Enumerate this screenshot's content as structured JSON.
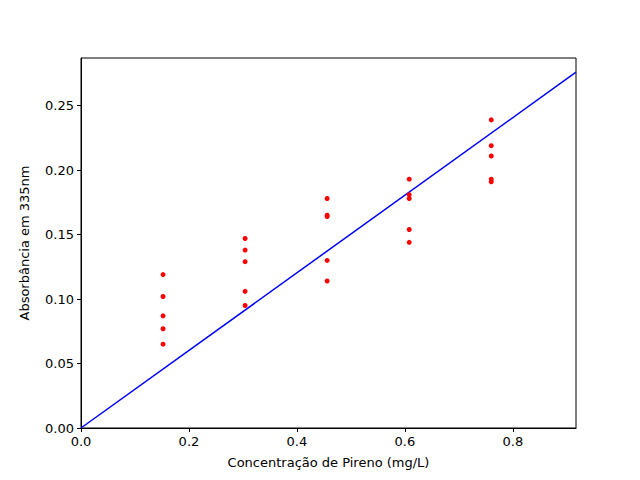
{
  "chart_data": {
    "type": "scatter",
    "x_label": "Concentração de Pireno (mg/L)",
    "y_label": "Absorbância em 335nm",
    "series": [
      {
        "type": "scatter",
        "color": "#ff0000",
        "marker": "circle",
        "x": [
          0.152,
          0.152,
          0.152,
          0.152,
          0.152,
          0.304,
          0.304,
          0.304,
          0.304,
          0.304,
          0.456,
          0.456,
          0.456,
          0.456,
          0.456,
          0.608,
          0.608,
          0.608,
          0.608,
          0.608,
          0.76,
          0.76,
          0.76,
          0.76,
          0.76
        ],
        "values": [
          0.119,
          0.102,
          0.087,
          0.077,
          0.065,
          0.147,
          0.138,
          0.129,
          0.106,
          0.095,
          0.178,
          0.165,
          0.164,
          0.13,
          0.114,
          0.193,
          0.181,
          0.178,
          0.154,
          0.144,
          0.239,
          0.219,
          0.211,
          0.193,
          0.191
        ]
      },
      {
        "type": "line",
        "color": "#0000ff",
        "line_style": "solid",
        "x": [
          0,
          0.917
        ],
        "values": [
          0,
          0.276
        ]
      }
    ],
    "xlim": [
      0,
      0.917
    ],
    "ylim": [
      0,
      0.287
    ],
    "xticks": [
      {
        "value": 0,
        "label": "0.0"
      },
      {
        "value": 0.2,
        "label": "0.2"
      },
      {
        "value": 0.4,
        "label": "0.4"
      },
      {
        "value": 0.6,
        "label": "0.6"
      },
      {
        "value": 0.8,
        "label": "0.8"
      }
    ],
    "yticks": [
      {
        "value": 0,
        "label": "0.00"
      },
      {
        "value": 0.05,
        "label": "0.05"
      },
      {
        "value": 0.1,
        "label": "0.10"
      },
      {
        "value": 0.15,
        "label": "0.15"
      },
      {
        "value": 0.2,
        "label": "0.20"
      },
      {
        "value": 0.25,
        "label": "0.25"
      }
    ],
    "grid": false
  }
}
